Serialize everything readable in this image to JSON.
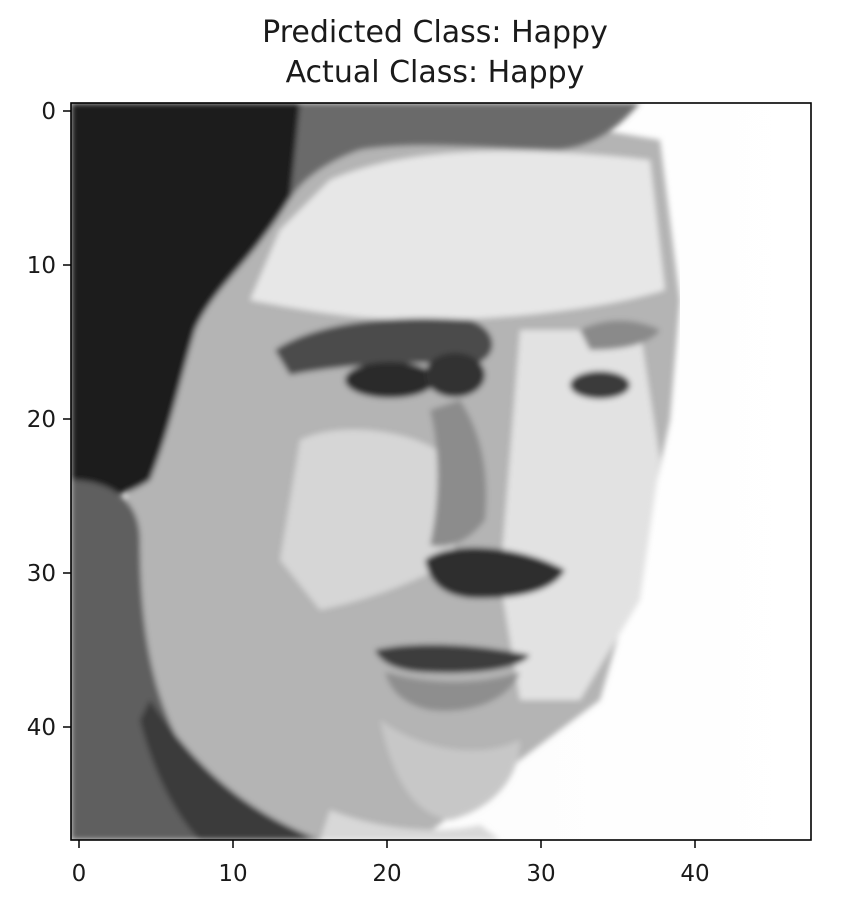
{
  "title": {
    "predicted": "Predicted Class: Happy",
    "actual": "Actual Class: Happy"
  },
  "image": {
    "description_label": "grayscale face",
    "cmap": "gray",
    "grid_size": 48
  },
  "axes": {
    "x_ticks": [
      "0",
      "10",
      "20",
      "30",
      "40"
    ],
    "y_ticks": [
      "0",
      "10",
      "20",
      "30",
      "40"
    ],
    "x_range": [
      0,
      47
    ],
    "y_range": [
      0,
      47
    ],
    "grid": false
  },
  "colors": {
    "frame": "#000000",
    "text": "#1a1a1a"
  }
}
